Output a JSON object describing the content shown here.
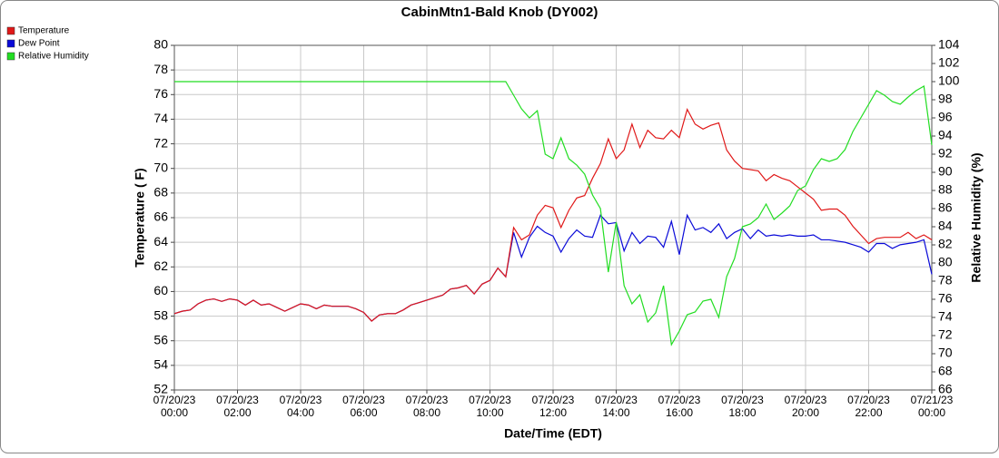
{
  "chart_data": {
    "type": "line",
    "title": "CabinMtn1-Bald Knob (DY002)",
    "x_label": "Date/Time (EDT)",
    "y_label": "Temperature ( F)",
    "y2_label": "Relative Humidity (%)",
    "grid": true,
    "legend": "top-left",
    "xlim": [
      0,
      24
    ],
    "xticks": [
      {
        "value": 0,
        "label": "07/20/23\n00:00"
      },
      {
        "value": 2,
        "label": "07/20/23\n02:00"
      },
      {
        "value": 4,
        "label": "07/20/23\n04:00"
      },
      {
        "value": 6,
        "label": "07/20/23\n06:00"
      },
      {
        "value": 8,
        "label": "07/20/23\n08:00"
      },
      {
        "value": 10,
        "label": "07/20/23\n10:00"
      },
      {
        "value": 12,
        "label": "07/20/23\n12:00"
      },
      {
        "value": 14,
        "label": "07/20/23\n14:00"
      },
      {
        "value": 16,
        "label": "07/20/23\n16:00"
      },
      {
        "value": 18,
        "label": "07/20/23\n18:00"
      },
      {
        "value": 20,
        "label": "07/20/23\n20:00"
      },
      {
        "value": 22,
        "label": "07/20/23\n22:00"
      },
      {
        "value": 24,
        "label": "07/21/23\n00:00"
      }
    ],
    "ylim": [
      52,
      80
    ],
    "yticks": [
      52,
      54,
      56,
      58,
      60,
      62,
      64,
      66,
      68,
      70,
      72,
      74,
      76,
      78,
      80
    ],
    "y2lim": [
      66,
      104
    ],
    "y2ticks": [
      66,
      68,
      70,
      72,
      74,
      76,
      78,
      80,
      82,
      84,
      86,
      88,
      90,
      92,
      94,
      96,
      98,
      100,
      102,
      104
    ],
    "x": [
      0,
      0.25,
      0.5,
      0.75,
      1,
      1.25,
      1.5,
      1.75,
      2,
      2.25,
      2.5,
      2.75,
      3,
      3.25,
      3.5,
      3.75,
      4,
      4.25,
      4.5,
      4.75,
      5,
      5.25,
      5.5,
      5.75,
      6,
      6.25,
      6.5,
      6.75,
      7,
      7.25,
      7.5,
      7.75,
      8,
      8.25,
      8.5,
      8.75,
      9,
      9.25,
      9.5,
      9.75,
      10,
      10.25,
      10.5,
      10.75,
      11,
      11.25,
      11.5,
      11.75,
      12,
      12.25,
      12.5,
      12.75,
      13,
      13.25,
      13.5,
      13.75,
      14,
      14.25,
      14.5,
      14.75,
      15,
      15.25,
      15.5,
      15.75,
      16,
      16.25,
      16.5,
      16.75,
      17,
      17.25,
      17.5,
      17.75,
      18,
      18.25,
      18.5,
      18.75,
      19,
      19.25,
      19.5,
      19.75,
      20,
      20.25,
      20.5,
      20.75,
      21,
      21.25,
      21.5,
      21.75,
      22,
      22.25,
      22.5,
      22.75,
      23,
      23.25,
      23.5,
      23.75,
      24
    ],
    "series": [
      {
        "name": "Dew Point",
        "color": "#0a0ad8",
        "axis": "y",
        "values": [
          58.2,
          58.4,
          58.5,
          59.0,
          59.3,
          59.4,
          59.2,
          59.4,
          59.3,
          58.9,
          59.3,
          58.9,
          59.0,
          58.7,
          58.4,
          58.7,
          59.0,
          58.9,
          58.6,
          58.9,
          58.8,
          58.8,
          58.8,
          58.6,
          58.3,
          57.6,
          58.1,
          58.2,
          58.2,
          58.5,
          58.9,
          59.1,
          59.3,
          59.5,
          59.7,
          60.2,
          60.3,
          60.5,
          59.8,
          60.6,
          60.9,
          61.9,
          61.2,
          64.8,
          62.8,
          64.4,
          65.3,
          64.8,
          64.5,
          63.2,
          64.3,
          65.0,
          64.5,
          64.4,
          66.2,
          65.5,
          65.6,
          63.3,
          64.8,
          63.9,
          64.5,
          64.4,
          63.6,
          65.7,
          63.0,
          66.2,
          65.0,
          65.2,
          64.8,
          65.5,
          64.3,
          64.8,
          65.1,
          64.3,
          65.0,
          64.5,
          64.6,
          64.5,
          64.6,
          64.5,
          64.5,
          64.6,
          64.2,
          64.2,
          64.1,
          64.0,
          63.8,
          63.6,
          63.2,
          63.9,
          63.9,
          63.5,
          63.8,
          63.9,
          64.0,
          64.2,
          61.4
        ]
      },
      {
        "name": "Temperature",
        "color": "#e01818",
        "axis": "y",
        "values": [
          58.2,
          58.4,
          58.5,
          59.0,
          59.3,
          59.4,
          59.2,
          59.4,
          59.3,
          58.9,
          59.3,
          58.9,
          59.0,
          58.7,
          58.4,
          58.7,
          59.0,
          58.9,
          58.6,
          58.9,
          58.8,
          58.8,
          58.8,
          58.6,
          58.3,
          57.6,
          58.1,
          58.2,
          58.2,
          58.5,
          58.9,
          59.1,
          59.3,
          59.5,
          59.7,
          60.2,
          60.3,
          60.5,
          59.8,
          60.6,
          60.9,
          61.9,
          61.2,
          65.2,
          64.2,
          64.6,
          66.2,
          67.0,
          66.8,
          65.2,
          66.6,
          67.6,
          67.8,
          69.2,
          70.4,
          72.4,
          70.8,
          71.5,
          73.6,
          71.7,
          73.1,
          72.5,
          72.4,
          73.1,
          72.5,
          74.8,
          73.6,
          73.2,
          73.5,
          73.7,
          71.5,
          70.6,
          70.0,
          69.9,
          69.8,
          69.0,
          69.5,
          69.2,
          69.0,
          68.5,
          68.0,
          67.5,
          66.6,
          66.7,
          66.7,
          66.2,
          65.3,
          64.6,
          63.9,
          64.3,
          64.4,
          64.4,
          64.4,
          64.8,
          64.3,
          64.6,
          64.2
        ]
      },
      {
        "name": "Relative Humidity",
        "color": "#22dd22",
        "axis": "y2",
        "values": [
          100,
          100,
          100,
          100,
          100,
          100,
          100,
          100,
          100,
          100,
          100,
          100,
          100,
          100,
          100,
          100,
          100,
          100,
          100,
          100,
          100,
          100,
          100,
          100,
          100,
          100,
          100,
          100,
          100,
          100,
          100,
          100,
          100,
          100,
          100,
          100,
          100,
          100,
          100,
          100,
          100,
          100,
          100,
          98.5,
          97.0,
          96.0,
          96.8,
          92.0,
          91.5,
          93.8,
          91.5,
          90.8,
          89.8,
          87.5,
          86.0,
          79.0,
          84.5,
          77.5,
          75.5,
          76.5,
          73.5,
          74.5,
          77.5,
          71.0,
          72.5,
          74.3,
          74.6,
          75.8,
          76.0,
          74.0,
          78.5,
          80.5,
          84.0,
          84.3,
          85.0,
          86.5,
          84.8,
          85.5,
          86.3,
          88.0,
          88.5,
          90.3,
          91.5,
          91.2,
          91.5,
          92.5,
          94.5,
          96.0,
          97.5,
          99.0,
          98.5,
          97.8,
          97.5,
          98.3,
          99.0,
          99.5,
          93.0
        ]
      }
    ],
    "legend_order": [
      1,
      0,
      2
    ]
  }
}
